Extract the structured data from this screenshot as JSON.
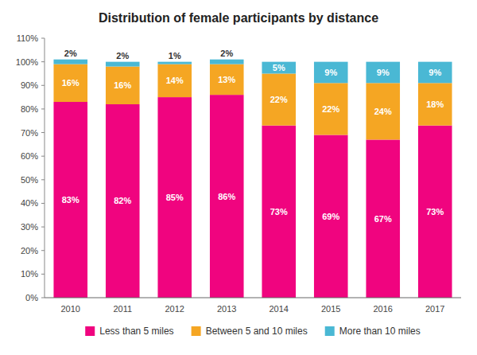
{
  "chart_data": {
    "type": "bar",
    "title": "Distribution of female participants by distance",
    "categories": [
      "2010",
      "2011",
      "2012",
      "2013",
      "2014",
      "2015",
      "2016",
      "2017"
    ],
    "series": [
      {
        "name": "Less than 5 miles",
        "color": "#F0047F",
        "values": [
          83,
          82,
          85,
          86,
          73,
          69,
          67,
          73
        ],
        "value_labels": [
          "83%",
          "82%",
          "85%",
          "86%",
          "73%",
          "69%",
          "67%",
          "73%"
        ]
      },
      {
        "name": "Between 5 and 10 miles",
        "color": "#F5A623",
        "values": [
          16,
          16,
          14,
          13,
          22,
          22,
          24,
          18
        ],
        "value_labels": [
          "16%",
          "16%",
          "14%",
          "13%",
          "22%",
          "22%",
          "24%",
          "18%"
        ]
      },
      {
        "name": "More than 10 miles",
        "color": "#4AB8D4",
        "values": [
          2,
          2,
          1,
          2,
          5,
          9,
          9,
          9
        ],
        "value_labels": [
          "2%",
          "2%",
          "1%",
          "2%",
          "5%",
          "9%",
          "9%",
          "9%"
        ]
      }
    ],
    "ylim": [
      0,
      110
    ],
    "yticks": [
      {
        "value": 0,
        "label": "0%"
      },
      {
        "value": 10,
        "label": "10%"
      },
      {
        "value": 20,
        "label": "20%"
      },
      {
        "value": 30,
        "label": "30%"
      },
      {
        "value": 40,
        "label": "40%"
      },
      {
        "value": 50,
        "label": "50%"
      },
      {
        "value": 60,
        "label": "60%"
      },
      {
        "value": 70,
        "label": "70%"
      },
      {
        "value": 80,
        "label": "80%"
      },
      {
        "value": 90,
        "label": "90%"
      },
      {
        "value": 100,
        "label": "100%"
      },
      {
        "value": 110,
        "label": "110%"
      }
    ],
    "stacked": true,
    "data_labels": true,
    "grid": false,
    "legend": "bottom"
  }
}
